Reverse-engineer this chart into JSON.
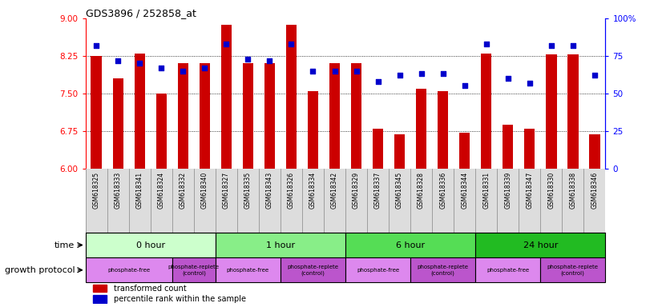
{
  "title": "GDS3896 / 252858_at",
  "samples": [
    "GSM618325",
    "GSM618333",
    "GSM618341",
    "GSM618324",
    "GSM618332",
    "GSM618340",
    "GSM618327",
    "GSM618335",
    "GSM618343",
    "GSM618326",
    "GSM618334",
    "GSM618342",
    "GSM618329",
    "GSM618337",
    "GSM618345",
    "GSM618328",
    "GSM618336",
    "GSM618344",
    "GSM618331",
    "GSM618339",
    "GSM618347",
    "GSM618330",
    "GSM618338",
    "GSM618346"
  ],
  "bar_values": [
    8.25,
    7.8,
    8.3,
    7.5,
    8.1,
    8.1,
    8.88,
    8.1,
    8.1,
    8.87,
    7.55,
    8.1,
    8.1,
    6.8,
    6.68,
    7.6,
    7.55,
    6.72,
    8.3,
    6.87,
    6.8,
    8.28,
    8.28,
    6.68
  ],
  "dot_values": [
    82,
    72,
    70,
    67,
    65,
    67,
    83,
    73,
    72,
    83,
    65,
    65,
    65,
    58,
    62,
    63,
    63,
    55,
    83,
    60,
    57,
    82,
    82,
    62
  ],
  "bar_color": "#cc0000",
  "dot_color": "#0000cc",
  "ylim_left": [
    6,
    9
  ],
  "ylim_right": [
    0,
    100
  ],
  "yticks_left": [
    6,
    6.75,
    7.5,
    8.25,
    9
  ],
  "yticks_right": [
    0,
    25,
    50,
    75,
    100
  ],
  "grid_values": [
    6.75,
    7.5,
    8.25
  ],
  "time_groups": [
    {
      "label": "0 hour",
      "start": 0,
      "end": 6,
      "color": "#ccffcc"
    },
    {
      "label": "1 hour",
      "start": 6,
      "end": 12,
      "color": "#88ee88"
    },
    {
      "label": "6 hour",
      "start": 12,
      "end": 18,
      "color": "#55dd55"
    },
    {
      "label": "24 hour",
      "start": 18,
      "end": 24,
      "color": "#22bb22"
    }
  ],
  "protocol_groups": [
    {
      "label": "phosphate-free",
      "start": 0,
      "end": 4,
      "color": "#dd88ee"
    },
    {
      "label": "phosphate-replete\n(control)",
      "start": 4,
      "end": 6,
      "color": "#bb55cc"
    },
    {
      "label": "phosphate-free",
      "start": 6,
      "end": 9,
      "color": "#dd88ee"
    },
    {
      "label": "phosphate-replete\n(control)",
      "start": 9,
      "end": 12,
      "color": "#bb55cc"
    },
    {
      "label": "phosphate-free",
      "start": 12,
      "end": 15,
      "color": "#dd88ee"
    },
    {
      "label": "phosphate-replete\n(control)",
      "start": 15,
      "end": 18,
      "color": "#bb55cc"
    },
    {
      "label": "phosphate-free",
      "start": 18,
      "end": 21,
      "color": "#dd88ee"
    },
    {
      "label": "phosphate-replete\n(control)",
      "start": 21,
      "end": 24,
      "color": "#bb55cc"
    }
  ],
  "legend_bar_label": "transformed count",
  "legend_dot_label": "percentile rank within the sample",
  "time_label": "time",
  "protocol_label": "growth protocol",
  "xtick_bg_color": "#dddddd",
  "border_color": "#000000"
}
